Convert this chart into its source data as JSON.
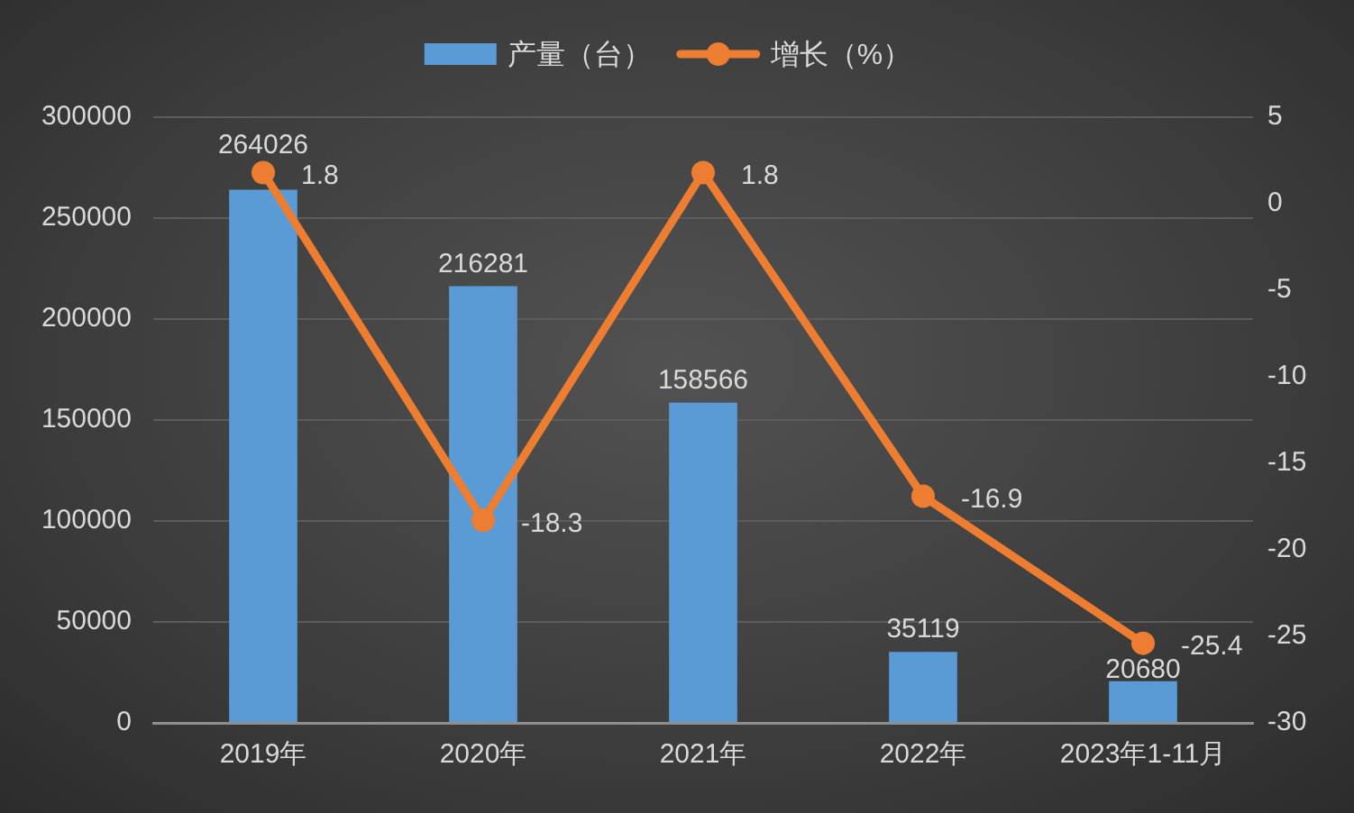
{
  "chart_data": {
    "type": "bar",
    "categories": [
      "2019年",
      "2020年",
      "2021年",
      "2022年",
      "2023年1-11月"
    ],
    "series": [
      {
        "name": "产量（台）",
        "type": "bar",
        "color": "#5b9bd5",
        "values": [
          264026,
          216281,
          158566,
          35119,
          20680
        ]
      },
      {
        "name": "增长（%）",
        "type": "line",
        "axis": "y2",
        "color": "#ed7d31",
        "values": [
          1.8,
          -18.3,
          1.8,
          -16.9,
          -25.4
        ]
      }
    ],
    "ylim": [
      0,
      300000
    ],
    "yticks": [
      0,
      50000,
      100000,
      150000,
      200000,
      250000,
      300000
    ],
    "y2lim": [
      -30,
      5
    ],
    "y2ticks": [
      -30,
      -25,
      -20,
      -15,
      -10,
      -5,
      0,
      5
    ],
    "grid": "y",
    "legend": "top",
    "marker": "circle",
    "data_labels": true
  }
}
